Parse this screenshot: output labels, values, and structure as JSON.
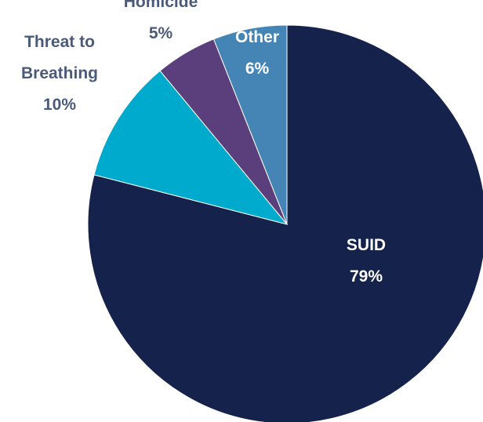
{
  "chart_data": {
    "type": "pie",
    "slices": [
      {
        "label_lines": [
          "SUID",
          "79%"
        ],
        "value": 79,
        "color": "#15234c",
        "text_color": "#ffffff"
      },
      {
        "label_lines": [
          "Threat to",
          "Breathing",
          "10%"
        ],
        "value": 10,
        "color": "#00aacc",
        "text_color": "#4a5a78"
      },
      {
        "label_lines": [
          "Homicide",
          "5%"
        ],
        "value": 5,
        "color": "#5a3f7c",
        "text_color": "#4a5a78"
      },
      {
        "label_lines": [
          "Other",
          "6%"
        ],
        "value": 6,
        "color": "#4485b5",
        "text_color": "#ffffff"
      }
    ]
  }
}
